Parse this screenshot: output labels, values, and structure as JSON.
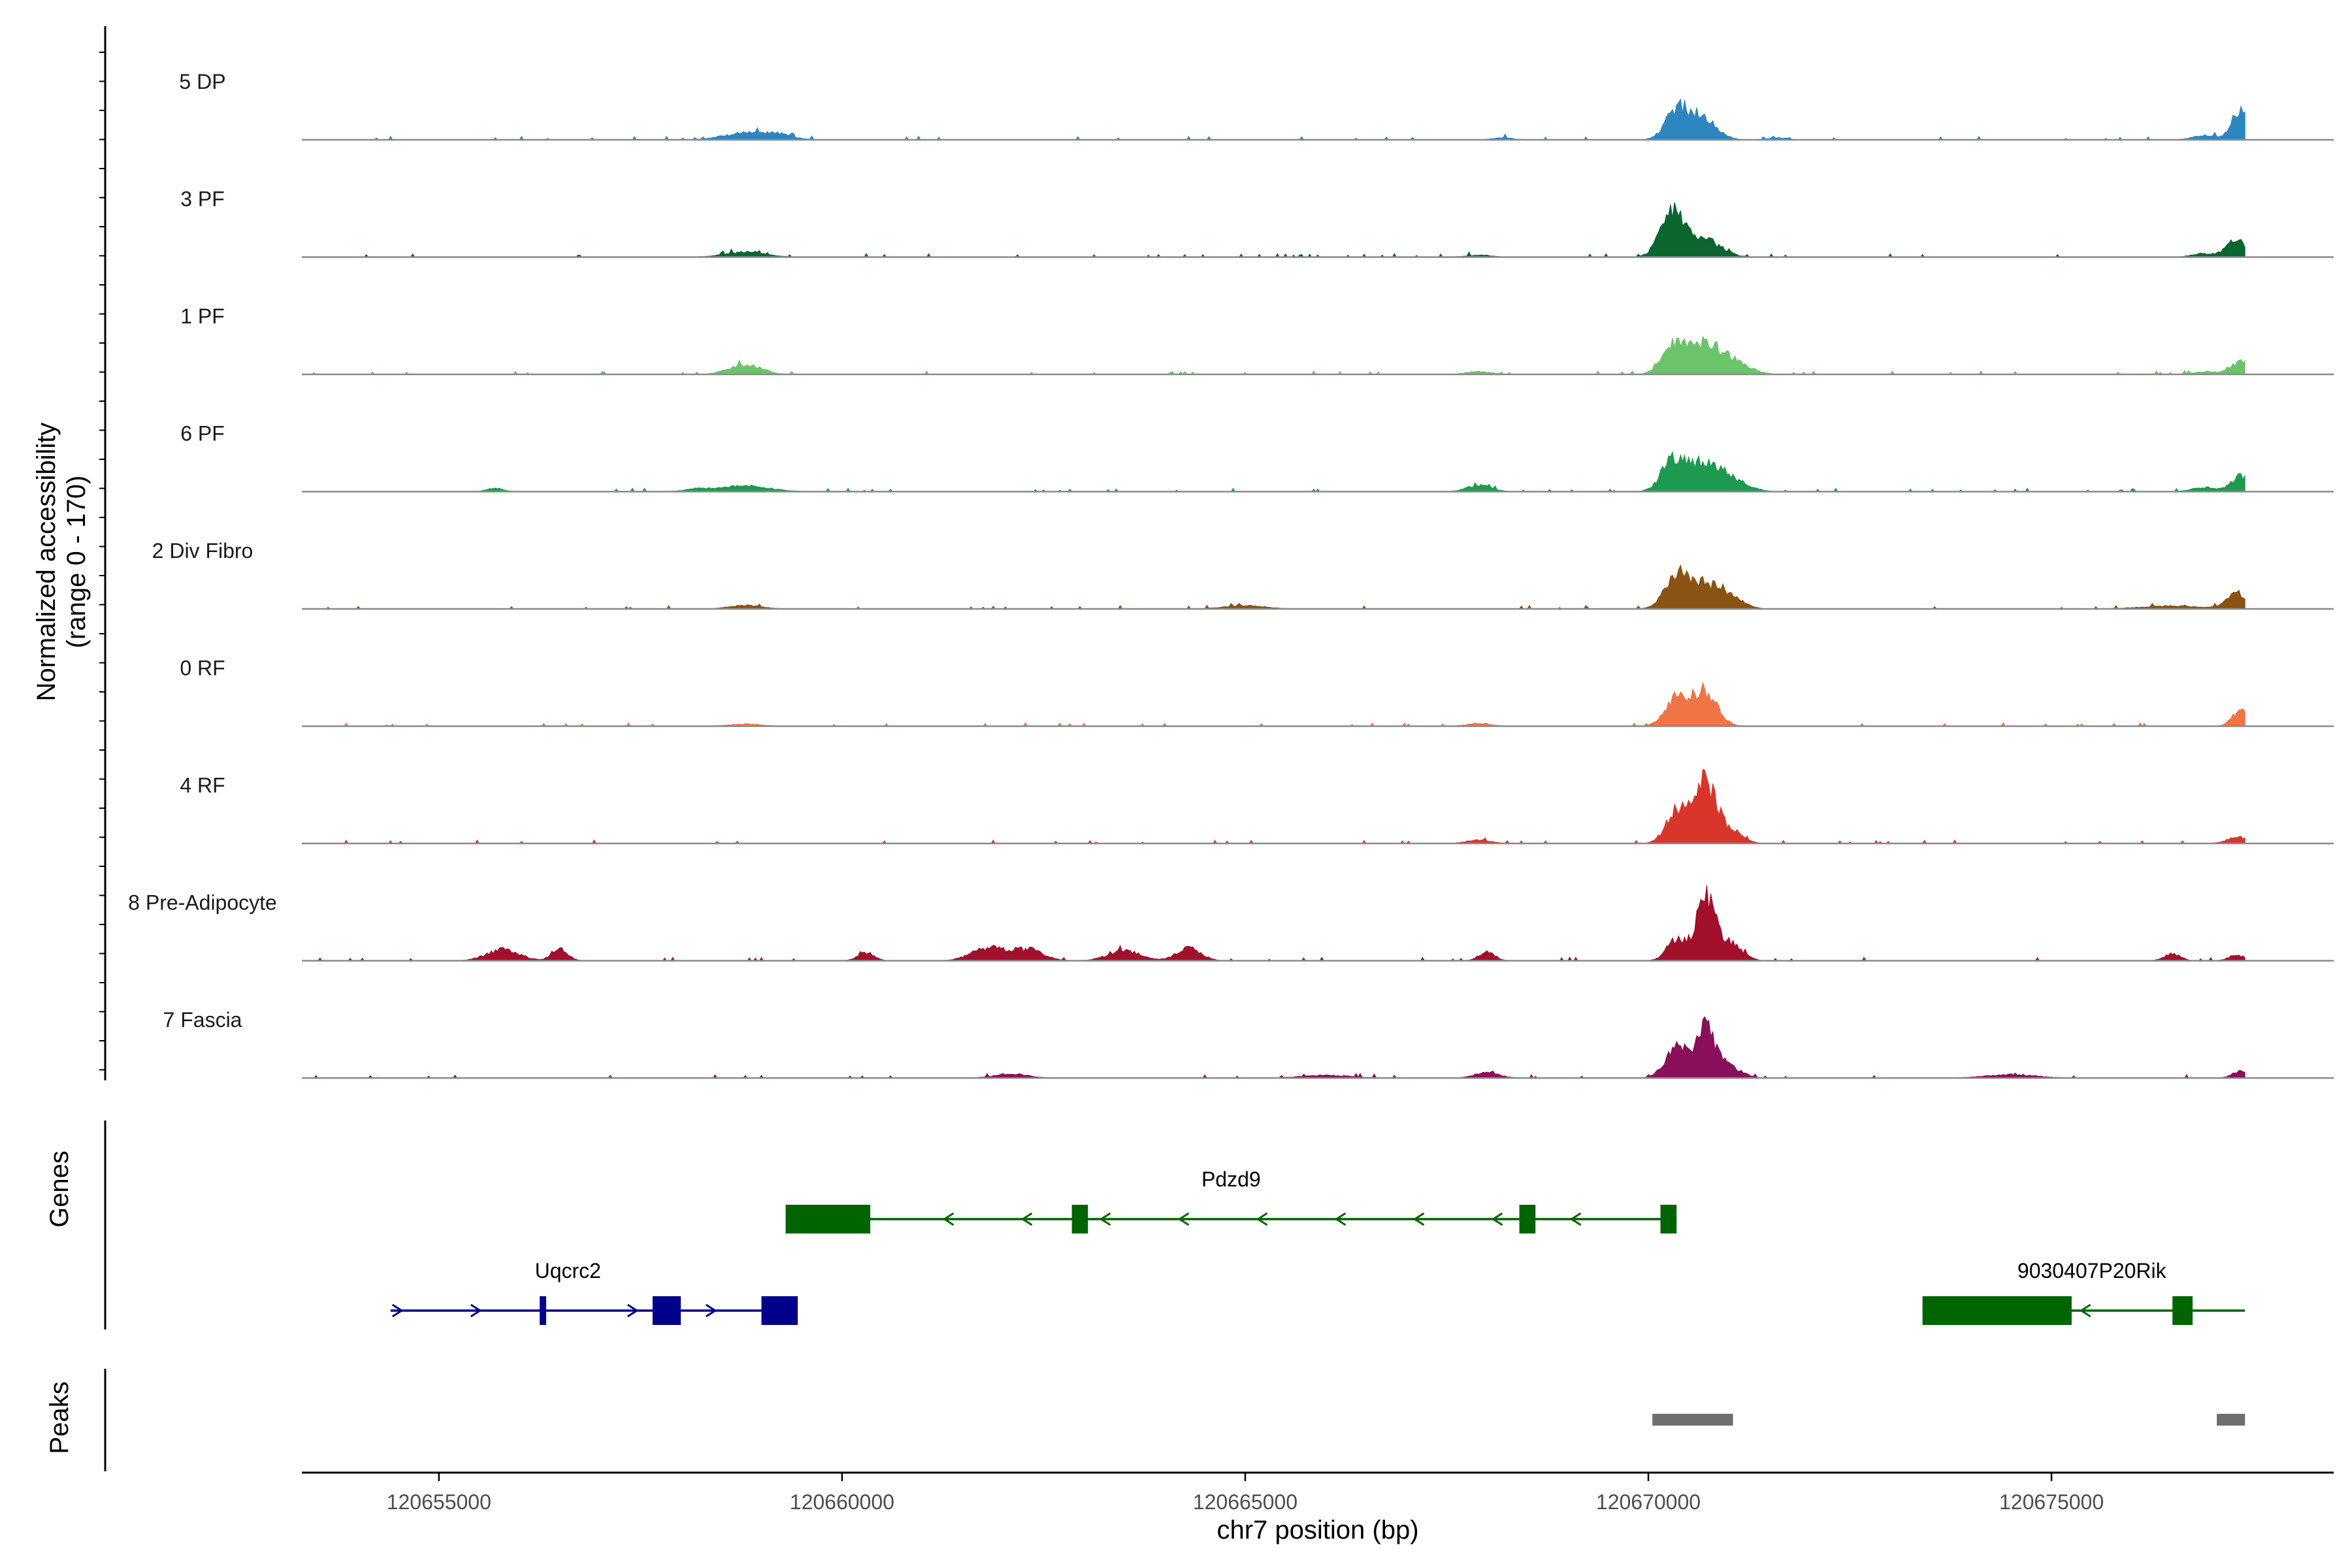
{
  "chart_data": {
    "type": "area",
    "title": "",
    "ylabel": "Normalized accessibility\n(range 0 - 170)",
    "ylabel_lines": [
      "Normalized accessibility",
      "(range 0 - 170)"
    ],
    "y_range": [
      0,
      170
    ],
    "xlabel": "chr7 position (bp)",
    "xlim": [
      120653300,
      120678500
    ],
    "x_ticks": [
      120655000,
      120660000,
      120665000,
      120670000,
      120675000
    ],
    "tracks": [
      {
        "name": "5 DP",
        "color": "#2E86C1",
        "peaks": [
          [
            120670350,
            38,
            140
          ],
          [
            120670650,
            32,
            180
          ],
          [
            120677350,
            44,
            110
          ],
          [
            120658800,
            9,
            280
          ],
          [
            120659200,
            6,
            200
          ],
          [
            120676900,
            6,
            150
          ],
          [
            120668200,
            3,
            120
          ],
          [
            120671600,
            3,
            120
          ]
        ]
      },
      {
        "name": "3 PF",
        "color": "#0B6630",
        "peaks": [
          [
            120670300,
            60,
            150
          ],
          [
            120670700,
            24,
            200
          ],
          [
            120677300,
            24,
            120
          ],
          [
            120658800,
            7,
            250
          ],
          [
            120676900,
            5,
            150
          ],
          [
            120667900,
            3,
            150
          ]
        ]
      },
      {
        "name": "1 PF",
        "color": "#6CC46A",
        "peaks": [
          [
            120670300,
            38,
            140
          ],
          [
            120670700,
            46,
            200
          ],
          [
            120671100,
            14,
            180
          ],
          [
            120658800,
            14,
            200
          ],
          [
            120677350,
            18,
            120
          ],
          [
            120676900,
            4,
            150
          ],
          [
            120667900,
            4,
            150
          ]
        ]
      },
      {
        "name": "6 PF",
        "color": "#1E9A50",
        "peaks": [
          [
            120670300,
            42,
            140
          ],
          [
            120670700,
            44,
            200
          ],
          [
            120671100,
            12,
            180
          ],
          [
            120677350,
            22,
            120
          ],
          [
            120658800,
            8,
            300
          ],
          [
            120667900,
            9,
            150
          ],
          [
            120676900,
            6,
            150
          ],
          [
            120655700,
            5,
            100
          ],
          [
            120658200,
            4,
            150
          ]
        ]
      },
      {
        "name": "2 Div Fibro",
        "color": "#8A5312",
        "peaks": [
          [
            120670350,
            42,
            150
          ],
          [
            120670700,
            34,
            200
          ],
          [
            120671050,
            12,
            150
          ],
          [
            120677300,
            22,
            120
          ],
          [
            120658800,
            5,
            200
          ],
          [
            120665000,
            5,
            250
          ],
          [
            120676500,
            4,
            400
          ]
        ]
      },
      {
        "name": "0 RF",
        "color": "#F07446",
        "peaks": [
          [
            120670350,
            40,
            140
          ],
          [
            120670700,
            50,
            150
          ],
          [
            120677350,
            24,
            100
          ],
          [
            120667900,
            4,
            150
          ],
          [
            120658800,
            3,
            200
          ]
        ]
      },
      {
        "name": "4 RF",
        "color": "#D8362A",
        "peaks": [
          [
            120670350,
            46,
            130
          ],
          [
            120670700,
            88,
            130
          ],
          [
            120671000,
            20,
            150
          ],
          [
            120677300,
            10,
            120
          ],
          [
            120667900,
            5,
            150
          ]
        ]
      },
      {
        "name": "8 Pre-Adipocyte",
        "color": "#A3102C",
        "peaks": [
          [
            120670350,
            30,
            120
          ],
          [
            120670700,
            96,
            110
          ],
          [
            120671000,
            26,
            150
          ],
          [
            120655800,
            16,
            200
          ],
          [
            120656500,
            16,
            100
          ],
          [
            120661800,
            18,
            200
          ],
          [
            120662300,
            16,
            200
          ],
          [
            120663500,
            14,
            200
          ],
          [
            120664300,
            18,
            150
          ],
          [
            120668000,
            12,
            100
          ],
          [
            120660300,
            12,
            100
          ],
          [
            120676500,
            10,
            100
          ],
          [
            120677300,
            8,
            100
          ]
        ]
      },
      {
        "name": "7 Fascia",
        "color": "#8A0F5A",
        "peaks": [
          [
            120670350,
            42,
            140
          ],
          [
            120670700,
            70,
            120
          ],
          [
            120671000,
            16,
            150
          ],
          [
            120677350,
            10,
            100
          ],
          [
            120668000,
            8,
            150
          ],
          [
            120662100,
            6,
            200
          ],
          [
            120674500,
            5,
            300
          ],
          [
            120666000,
            4,
            300
          ]
        ]
      }
    ],
    "genes": [
      {
        "name": "Pdzd9",
        "strand": "-",
        "color": "#006400",
        "start": 120659300,
        "end": 120670350,
        "exons": [
          [
            120659300,
            120660350
          ],
          [
            120662850,
            120663050
          ],
          [
            120668400,
            120668600
          ],
          [
            120670150,
            120670350
          ]
        ]
      },
      {
        "name": "Uqcrc2",
        "strand": "+",
        "color": "#00008B",
        "start": 120654400,
        "end": 120659450,
        "exons": [
          [
            120656250,
            120656330
          ],
          [
            120657650,
            120658000
          ],
          [
            120659000,
            120659450
          ]
        ]
      },
      {
        "name": "9030407P20Rik",
        "strand": "-",
        "color": "#006400",
        "start": 120673400,
        "end": 120677400,
        "exons": [
          [
            120673400,
            120675250
          ],
          [
            120676500,
            120676750
          ]
        ]
      }
    ],
    "peaks_track": [
      [
        120670050,
        120671050
      ],
      [
        120677050,
        120677400
      ]
    ],
    "peaks_color": "#6e6e6e",
    "panel_titles": {
      "genes": "Genes",
      "peaks": "Peaks"
    }
  }
}
